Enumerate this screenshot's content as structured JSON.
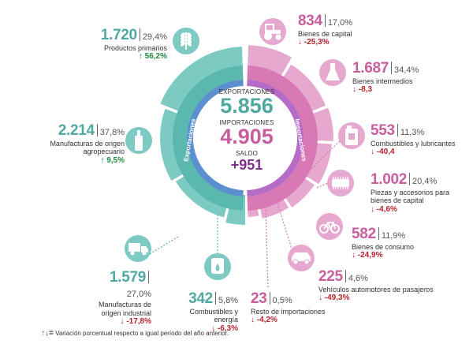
{
  "center": {
    "exports_label": "EXPORTACIONES",
    "exports_value": "5.856",
    "imports_label": "IMPORTACIONES",
    "imports_value": "4.905",
    "balance_label": "SALDO",
    "balance_value": "+951"
  },
  "ring": {
    "exports_text": "Exportaciones",
    "imports_text": "Importaciones"
  },
  "colors": {
    "exports": "#5bb8ae",
    "imports": "#d878b4",
    "exports_light": "#7ccac1",
    "imports_light": "#e7a8cf",
    "inner_blue": "#5b8fd0",
    "up": "#1e8a3c",
    "down": "#b3232b"
  },
  "exports": [
    {
      "value": "1.720",
      "pct": "29,4%",
      "name": "Productos primarios",
      "change": "56,2%",
      "dir": "up",
      "icon": "wheat-icon"
    },
    {
      "value": "2.214",
      "pct": "37,8%",
      "name": "Manufacturas de origen agropecuario",
      "change": "9,5%",
      "dir": "up",
      "icon": "bottle-icon"
    },
    {
      "value": "1.579",
      "pct": "27,0%",
      "name": "Manufacturas de origen industrial",
      "change": "-17,8%",
      "dir": "down",
      "icon": "truck-icon"
    },
    {
      "value": "342",
      "pct": "5,8%",
      "name": "Combustibles y energía",
      "change": "-6,3%",
      "dir": "down",
      "icon": "oil-barrel-icon"
    }
  ],
  "imports": [
    {
      "value": "834",
      "pct": "17,0%",
      "name": "Bienes de capital",
      "change": "-25,3%",
      "dir": "down",
      "icon": "tractor-icon"
    },
    {
      "value": "1.687",
      "pct": "34,4%",
      "name": "Bienes intermedios",
      "change": "-8,3",
      "dir": "down",
      "icon": "flask-icon"
    },
    {
      "value": "553",
      "pct": "11,3%",
      "name": "Combustibles y lubricantes",
      "change": "-40,4",
      "dir": "down",
      "icon": "fuel-can-icon"
    },
    {
      "value": "1.002",
      "pct": "20,4%",
      "name": "Piezas y accesorios para bienes de capital",
      "change": "-4,6%",
      "dir": "down",
      "icon": "chip-icon"
    },
    {
      "value": "582",
      "pct": "11,9%",
      "name": "Bienes de consumo",
      "change": "-24,9%",
      "dir": "down",
      "icon": "bicycle-icon"
    },
    {
      "value": "225",
      "pct": "4,6%",
      "name": "Vehículos automotores de pasajeros",
      "change": "-49,3%",
      "dir": "down",
      "icon": "car-icon"
    },
    {
      "value": "23",
      "pct": "0,5%",
      "name": "Resto de importaciones",
      "change": "-4,2%",
      "dir": "down",
      "icon": "other-icon"
    }
  ],
  "legend": {
    "text": "Variación porcentual respecto a igual período del año anterior."
  }
}
